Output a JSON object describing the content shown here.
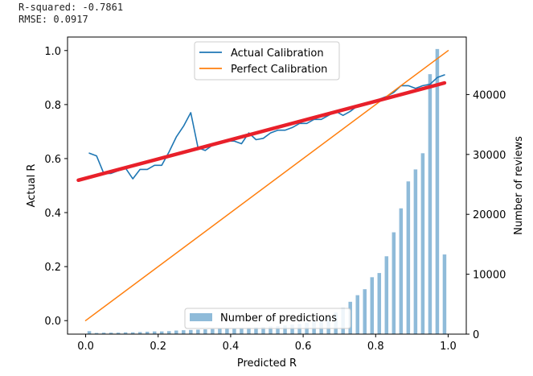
{
  "stats": {
    "r_squared": "R-squared: -0.7861",
    "rmse": "RMSE: 0.0917"
  },
  "colors": {
    "actual": "#1f77b4",
    "perfect": "#ff7f0e",
    "fit": "#e8202a",
    "bars": "#8fbbd9"
  },
  "chart_data": {
    "type": "line",
    "xlabel": "Predicted R",
    "ylabel": "Actual R",
    "y2label": "Number of reviews",
    "xlim": [
      -0.05,
      1.05
    ],
    "ylim": [
      -0.05,
      1.05
    ],
    "y2lim": [
      0,
      49600
    ],
    "xticks": [
      0.0,
      0.2,
      0.4,
      0.6,
      0.8,
      1.0
    ],
    "xtick_labels": [
      "0.0",
      "0.2",
      "0.4",
      "0.6",
      "0.8",
      "1.0"
    ],
    "yticks": [
      0.0,
      0.2,
      0.4,
      0.6,
      0.8,
      1.0
    ],
    "ytick_labels": [
      "0.0",
      "0.2",
      "0.4",
      "0.6",
      "0.8",
      "1.0"
    ],
    "y2ticks": [
      0,
      10000,
      20000,
      30000,
      40000
    ],
    "y2tick_labels": [
      "0",
      "10000",
      "20000",
      "30000",
      "40000"
    ],
    "legend_top": [
      {
        "label": "Actual Calibration",
        "color": "#1f77b4"
      },
      {
        "label": "Perfect Calibration",
        "color": "#ff7f0e"
      }
    ],
    "legend_bottom": [
      {
        "label": "Number of predictions",
        "color": "#8fbbd9"
      }
    ],
    "series": [
      {
        "name": "Actual Calibration",
        "x": [
          0.01,
          0.03,
          0.05,
          0.07,
          0.09,
          0.11,
          0.13,
          0.15,
          0.17,
          0.19,
          0.21,
          0.23,
          0.25,
          0.27,
          0.29,
          0.31,
          0.33,
          0.35,
          0.37,
          0.39,
          0.41,
          0.43,
          0.45,
          0.47,
          0.49,
          0.51,
          0.53,
          0.55,
          0.57,
          0.59,
          0.61,
          0.63,
          0.65,
          0.67,
          0.69,
          0.71,
          0.73,
          0.75,
          0.77,
          0.79,
          0.81,
          0.83,
          0.85,
          0.87,
          0.89,
          0.91,
          0.93,
          0.95,
          0.97,
          0.99
        ],
        "y": [
          0.62,
          0.61,
          0.545,
          0.545,
          0.555,
          0.565,
          0.525,
          0.56,
          0.56,
          0.575,
          0.575,
          0.625,
          0.68,
          0.72,
          0.77,
          0.64,
          0.63,
          0.65,
          0.66,
          0.665,
          0.665,
          0.655,
          0.695,
          0.67,
          0.675,
          0.695,
          0.705,
          0.705,
          0.715,
          0.73,
          0.73,
          0.745,
          0.745,
          0.76,
          0.775,
          0.76,
          0.775,
          0.795,
          0.8,
          0.81,
          0.82,
          0.83,
          0.845,
          0.87,
          0.87,
          0.86,
          0.87,
          0.875,
          0.9,
          0.91
        ]
      },
      {
        "name": "Perfect Calibration",
        "x": [
          0.0,
          1.0
        ],
        "y": [
          0.0,
          1.0
        ]
      },
      {
        "name": "",
        "x": [
          -0.02,
          0.99
        ],
        "y": [
          0.52,
          0.88
        ]
      }
    ],
    "bars": {
      "name": "Number of predictions",
      "x": [
        0.01,
        0.03,
        0.05,
        0.07,
        0.09,
        0.11,
        0.13,
        0.15,
        0.17,
        0.19,
        0.21,
        0.23,
        0.25,
        0.27,
        0.29,
        0.31,
        0.33,
        0.35,
        0.37,
        0.39,
        0.41,
        0.43,
        0.45,
        0.47,
        0.49,
        0.51,
        0.53,
        0.55,
        0.57,
        0.59,
        0.61,
        0.63,
        0.65,
        0.67,
        0.69,
        0.71,
        0.73,
        0.75,
        0.77,
        0.79,
        0.81,
        0.83,
        0.85,
        0.87,
        0.89,
        0.91,
        0.93,
        0.95,
        0.97,
        0.99
      ],
      "values": [
        500,
        200,
        250,
        250,
        250,
        300,
        300,
        350,
        400,
        450,
        450,
        500,
        600,
        650,
        700,
        750,
        800,
        850,
        900,
        950,
        1000,
        1050,
        1100,
        1150,
        1200,
        1300,
        1350,
        1450,
        1600,
        1700,
        1900,
        2200,
        2500,
        3000,
        3600,
        4400,
        5400,
        6500,
        7500,
        9500,
        10200,
        13000,
        17000,
        21000,
        25500,
        27500,
        30200,
        43400,
        47600,
        13300
      ]
    }
  }
}
